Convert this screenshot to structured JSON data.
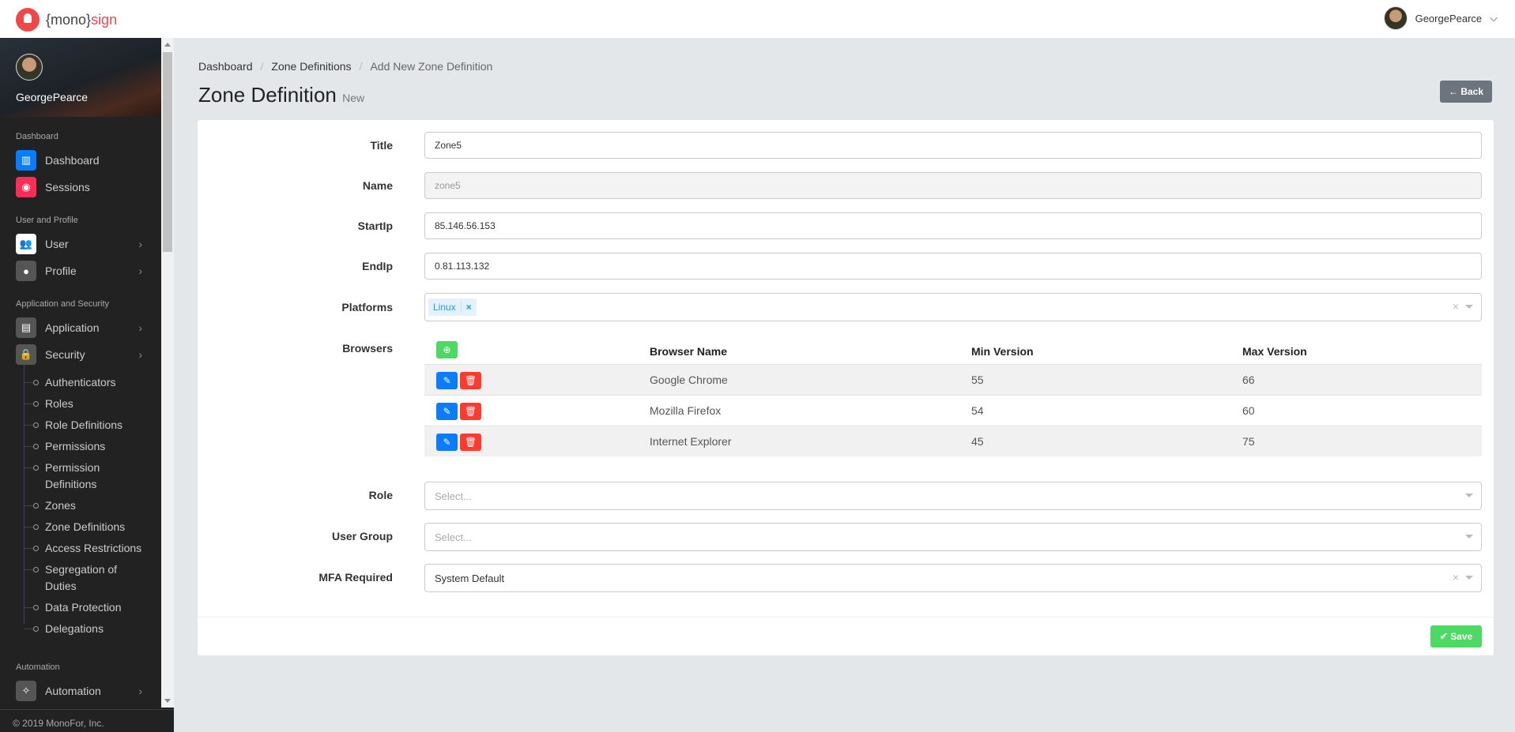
{
  "app": {
    "logo_text_prefix": "{mono}",
    "logo_text_suffix": "sign",
    "user": "GeorgePearce"
  },
  "sidebar": {
    "username": "GeorgePearce",
    "sections": [
      "Dashboard",
      "User and Profile",
      "Application and Security",
      "Automation"
    ],
    "items": [
      {
        "label": "Dashboard",
        "icon": "chart-icon",
        "color": "#0a7cff"
      },
      {
        "label": "Sessions",
        "icon": "record-icon",
        "color": "#ff2d55"
      },
      {
        "label": "User",
        "icon": "users-icon",
        "color": "#ffffff"
      },
      {
        "label": "Profile",
        "icon": "person-icon",
        "color": "#555555"
      },
      {
        "label": "Application",
        "icon": "cabinet-icon",
        "color": "#555555"
      },
      {
        "label": "Security",
        "icon": "lock-icon",
        "color": "#555555"
      },
      {
        "label": "Automation",
        "icon": "magic-wand-icon",
        "color": "#555555"
      }
    ],
    "security_sub": [
      "Authenticators",
      "Roles",
      "Role Definitions",
      "Permissions",
      "Permission Definitions",
      "Zones",
      "Zone Definitions",
      "Access Restrictions",
      "Segregation of Duties",
      "Data Protection",
      "Delegations"
    ],
    "footer": "© 2019 MonoFor, Inc."
  },
  "breadcrumb": [
    "Dashboard",
    "Zone Definitions",
    "Add New Zone Definition"
  ],
  "page": {
    "title": "Zone Definition",
    "subtitle": "New",
    "back_label": "← Back",
    "save_label": "✔ Save"
  },
  "form": {
    "title": {
      "label": "Title",
      "value": "Zone5"
    },
    "name": {
      "label": "Name",
      "value": "zone5"
    },
    "start_ip": {
      "label": "StartIp",
      "value": "85.146.56.153"
    },
    "end_ip": {
      "label": "EndIp",
      "value": "0.81.113.132"
    },
    "platforms": {
      "label": "Platforms",
      "tags": [
        "Linux"
      ]
    },
    "browsers": {
      "label": "Browsers",
      "columns": [
        "Browser Name",
        "Min Version",
        "Max Version"
      ],
      "rows": [
        [
          "Google Chrome",
          "55",
          "66"
        ],
        [
          "Mozilla Firefox",
          "54",
          "60"
        ],
        [
          "Internet Explorer",
          "45",
          "75"
        ]
      ]
    },
    "role": {
      "label": "Role",
      "placeholder": "Select..."
    },
    "user_group": {
      "label": "User Group",
      "placeholder": "Select..."
    },
    "mfa": {
      "label": "MFA Required",
      "value": "System Default"
    }
  }
}
